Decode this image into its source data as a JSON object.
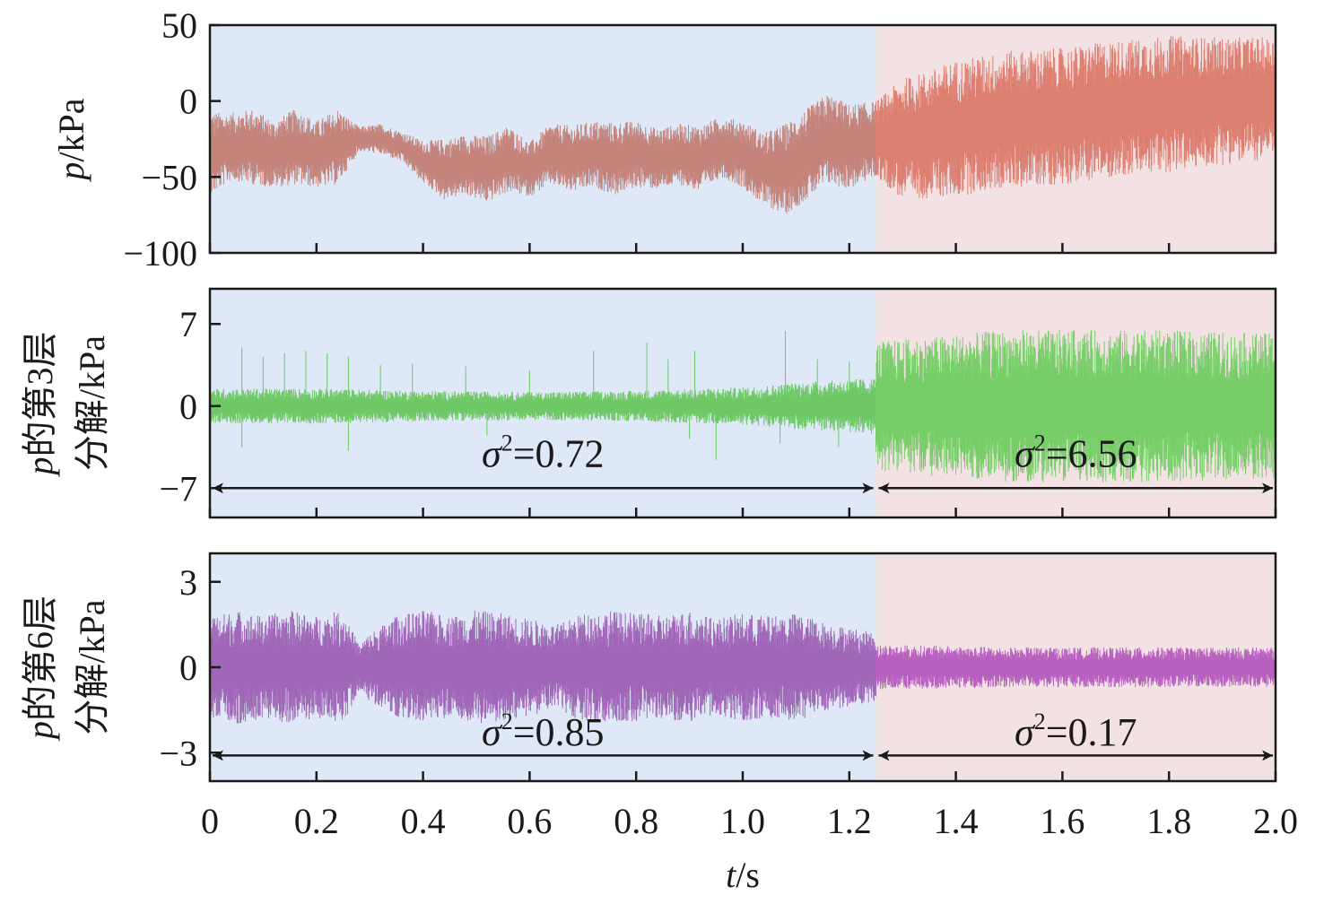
{
  "chart_data": [
    {
      "type": "line",
      "ylabel_parts": [
        "p",
        "/kPa"
      ],
      "ylim": [
        -100,
        50
      ],
      "yticks": [
        50,
        0,
        -50,
        -100
      ],
      "ytick_labels": [
        "50",
        "0",
        "−50",
        "−100"
      ],
      "xlim": [
        0,
        2.0
      ],
      "regions": [
        {
          "x_start": 0,
          "x_end": 1.25,
          "color": "#dfe8f6"
        },
        {
          "x_start": 1.25,
          "x_end": 2.0,
          "color": "#f2e2e4"
        }
      ],
      "series": [
        {
          "x_start": 0,
          "x_end": 1.25,
          "color": "#c4847c",
          "envelope": [
            [
              0,
              -35,
              28
            ],
            [
              0.04,
              -30,
              22
            ],
            [
              0.08,
              -30,
              25
            ],
            [
              0.12,
              -35,
              22
            ],
            [
              0.16,
              -30,
              25
            ],
            [
              0.2,
              -35,
              22
            ],
            [
              0.24,
              -30,
              25
            ],
            [
              0.28,
              -25,
              8
            ],
            [
              0.32,
              -25,
              10
            ],
            [
              0.36,
              -30,
              10
            ],
            [
              0.4,
              -40,
              14
            ],
            [
              0.44,
              -45,
              20
            ],
            [
              0.48,
              -42,
              20
            ],
            [
              0.52,
              -45,
              22
            ],
            [
              0.56,
              -38,
              22
            ],
            [
              0.6,
              -45,
              18
            ],
            [
              0.64,
              -35,
              20
            ],
            [
              0.68,
              -38,
              22
            ],
            [
              0.72,
              -35,
              22
            ],
            [
              0.76,
              -38,
              24
            ],
            [
              0.8,
              -35,
              22
            ],
            [
              0.84,
              -38,
              20
            ],
            [
              0.88,
              -35,
              20
            ],
            [
              0.92,
              -38,
              22
            ],
            [
              0.96,
              -30,
              20
            ],
            [
              1.0,
              -35,
              22
            ],
            [
              1.04,
              -45,
              24
            ],
            [
              1.08,
              -45,
              30
            ],
            [
              1.12,
              -35,
              30
            ],
            [
              1.16,
              -25,
              30
            ],
            [
              1.2,
              -30,
              28
            ],
            [
              1.25,
              -25,
              25
            ]
          ]
        },
        {
          "x_start": 1.25,
          "x_end": 2.0,
          "color": "#dc7f70",
          "envelope": [
            [
              1.25,
              -25,
              25
            ],
            [
              1.3,
              -25,
              40
            ],
            [
              1.35,
              -22,
              42
            ],
            [
              1.4,
              -18,
              45
            ],
            [
              1.45,
              -15,
              45
            ],
            [
              1.5,
              -12,
              45
            ],
            [
              1.6,
              -10,
              45
            ],
            [
              1.7,
              -5,
              45
            ],
            [
              1.8,
              -2,
              45
            ],
            [
              1.9,
              0,
              42
            ],
            [
              2.0,
              2,
              40
            ]
          ]
        }
      ]
    },
    {
      "type": "line",
      "ylabel_lines": [
        "p的第3层",
        "分解/kPa"
      ],
      "ylim": [
        -9.5,
        10
      ],
      "yticks": [
        7,
        0,
        -7
      ],
      "ytick_labels": [
        "7",
        "0",
        "−7"
      ],
      "xlim": [
        0,
        2.0
      ],
      "regions": [
        {
          "x_start": 0,
          "x_end": 1.25,
          "color": "#dfe8f6"
        },
        {
          "x_start": 1.25,
          "x_end": 2.0,
          "color": "#f2e2e4"
        }
      ],
      "series": [
        {
          "x_start": 0,
          "x_end": 1.25,
          "color": "#6fc866",
          "envelope": [
            [
              0,
              0,
              1.5
            ],
            [
              0.2,
              0,
              1.5
            ],
            [
              0.4,
              0,
              1.3
            ],
            [
              0.6,
              0,
              1.2
            ],
            [
              0.8,
              0,
              1.3
            ],
            [
              1.0,
              0,
              1.6
            ],
            [
              1.1,
              0,
              2.0
            ],
            [
              1.25,
              0,
              2.4
            ]
          ],
          "spikes": [
            [
              0.06,
              5
            ],
            [
              0.1,
              4.2
            ],
            [
              0.14,
              4.5
            ],
            [
              0.18,
              4.7
            ],
            [
              0.22,
              4.5
            ],
            [
              0.26,
              4.2
            ],
            [
              0.32,
              3.5
            ],
            [
              0.38,
              3.6
            ],
            [
              0.48,
              3.4
            ],
            [
              0.6,
              3.0
            ],
            [
              0.72,
              4.7
            ],
            [
              0.82,
              5.4
            ],
            [
              0.86,
              4
            ],
            [
              0.91,
              4.7
            ],
            [
              0.95,
              -4.6
            ],
            [
              1.08,
              6.4
            ],
            [
              1.14,
              4.0
            ],
            [
              1.2,
              3.8
            ],
            [
              0.06,
              -3.5
            ],
            [
              0.26,
              -3.8
            ],
            [
              0.52,
              -2.5
            ],
            [
              0.9,
              -2.8
            ],
            [
              1.07,
              -3.2
            ],
            [
              1.18,
              -3.5
            ]
          ]
        },
        {
          "x_start": 1.25,
          "x_end": 2.0,
          "color": "#77ce68",
          "envelope": [
            [
              1.25,
              0,
              5.5
            ],
            [
              1.5,
              0,
              6.5
            ],
            [
              1.75,
              0,
              6.5
            ],
            [
              2.0,
              0,
              6.2
            ]
          ]
        }
      ],
      "annotations": [
        {
          "text": "σ²=0.72",
          "x": 0.625,
          "y": -4.1,
          "arrow_y": -7.0,
          "x_from": 0,
          "x_to": 1.25
        },
        {
          "text": "σ²=6.56",
          "x": 1.625,
          "y": -4.1,
          "arrow_y": -7.0,
          "x_from": 1.25,
          "x_to": 2.0
        }
      ]
    },
    {
      "type": "line",
      "ylabel_lines": [
        "p的第6层",
        "分解/kPa"
      ],
      "ylim": [
        -4.0,
        4.0
      ],
      "yticks": [
        3,
        0,
        -3
      ],
      "ytick_labels": [
        "3",
        "0",
        "−3"
      ],
      "xlim": [
        0,
        2.0
      ],
      "regions": [
        {
          "x_start": 0,
          "x_end": 1.25,
          "color": "#dfe8f6"
        },
        {
          "x_start": 1.25,
          "x_end": 2.0,
          "color": "#f2e2e4"
        }
      ],
      "series": [
        {
          "x_start": 0,
          "x_end": 1.25,
          "color": "#a066b8",
          "envelope": [
            [
              0,
              0,
              1.8
            ],
            [
              0.05,
              0,
              2.0
            ],
            [
              0.1,
              0,
              1.8
            ],
            [
              0.15,
              0,
              2.0
            ],
            [
              0.2,
              0,
              1.8
            ],
            [
              0.25,
              0,
              2.0
            ],
            [
              0.28,
              0,
              0.8
            ],
            [
              0.3,
              0,
              1.2
            ],
            [
              0.35,
              0,
              1.8
            ],
            [
              0.4,
              0,
              2.0
            ],
            [
              0.45,
              0,
              1.8
            ],
            [
              0.5,
              0,
              2.0
            ],
            [
              0.55,
              0,
              1.9
            ],
            [
              0.6,
              0,
              1.7
            ],
            [
              0.65,
              0,
              1.5
            ],
            [
              0.7,
              0,
              1.9
            ],
            [
              0.75,
              0,
              2.0
            ],
            [
              0.8,
              0,
              1.9
            ],
            [
              0.85,
              0,
              1.8
            ],
            [
              0.9,
              0,
              2.0
            ],
            [
              0.95,
              0,
              1.7
            ],
            [
              1.0,
              0,
              1.9
            ],
            [
              1.05,
              0,
              1.8
            ],
            [
              1.1,
              0,
              1.9
            ],
            [
              1.15,
              0,
              1.6
            ],
            [
              1.2,
              0,
              1.4
            ],
            [
              1.25,
              0,
              1.2
            ]
          ]
        },
        {
          "x_start": 1.25,
          "x_end": 2.0,
          "color": "#b860c0",
          "envelope": [
            [
              1.25,
              0,
              0.8
            ],
            [
              1.5,
              0,
              0.7
            ],
            [
              1.75,
              0,
              0.7
            ],
            [
              2.0,
              0,
              0.7
            ]
          ]
        }
      ],
      "annotations": [
        {
          "text": "σ²=0.85",
          "x": 0.625,
          "y": -2.3,
          "arrow_y": -3.1,
          "x_from": 0,
          "x_to": 1.25
        },
        {
          "text": "σ²=0.17",
          "x": 1.625,
          "y": -2.3,
          "arrow_y": -3.1,
          "x_from": 1.25,
          "x_to": 2.0
        }
      ]
    }
  ],
  "xaxis": {
    "ticks": [
      0,
      0.2,
      0.4,
      0.6,
      0.8,
      1.0,
      1.2,
      1.4,
      1.6,
      1.8,
      2.0
    ],
    "tick_labels": [
      "0",
      "0.2",
      "0.4",
      "0.6",
      "0.8",
      "1.0",
      "1.2",
      "1.4",
      "1.6",
      "1.8",
      "2.0"
    ],
    "label_parts": [
      "t",
      "/s"
    ]
  }
}
